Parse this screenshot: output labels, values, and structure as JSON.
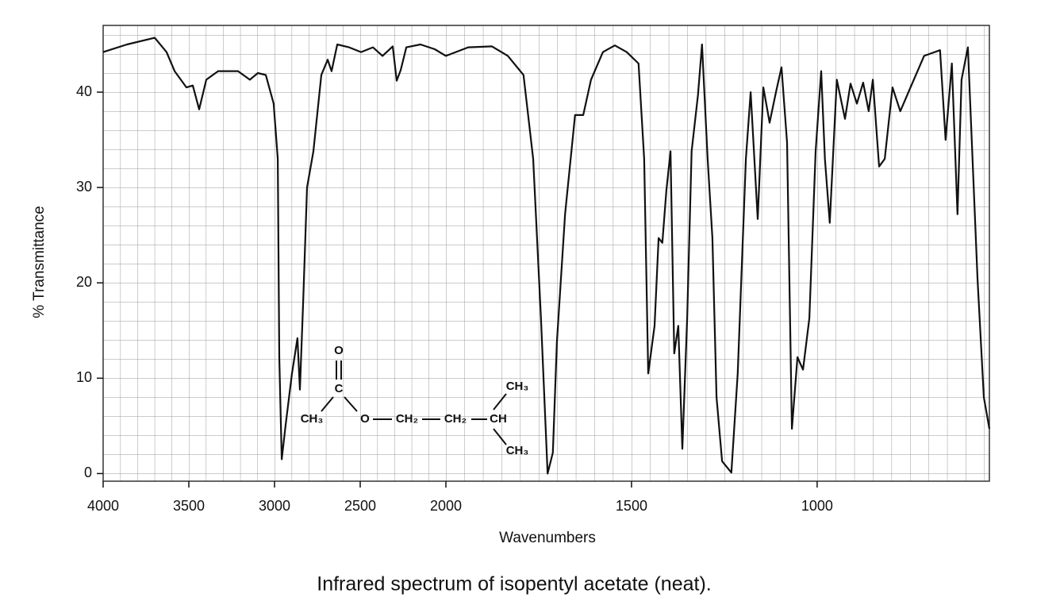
{
  "chart_data": {
    "type": "line",
    "xlabel": "Wavenumbers",
    "ylabel": "% Transmittance",
    "caption": "Infrared spectrum of isopentyl acetate (neat).",
    "structure": {
      "labels": [
        "O",
        "C",
        "CH₃",
        "O",
        "CH₂",
        "CH₂",
        "CH",
        "CH₃",
        "CH₃"
      ]
    },
    "color": "#111111",
    "xlim": [
      4000,
      536
    ],
    "xbreak": 2000,
    "ylim": [
      -0.8,
      47
    ],
    "xticks": [
      4000,
      3500,
      3000,
      2500,
      2000,
      1500,
      1000
    ],
    "yticks": [
      0,
      10,
      20,
      30,
      40
    ],
    "grid": true,
    "x": [
      4000,
      3861,
      3699,
      3630,
      3583,
      3514,
      3477,
      3440,
      3398,
      3329,
      3213,
      3144,
      3097,
      3051,
      3005,
      2981,
      2972,
      2958,
      2935,
      2898,
      2866,
      2852,
      2833,
      2810,
      2773,
      2727,
      2690,
      2667,
      2634,
      2565,
      2495,
      2426,
      2370,
      2310,
      2287,
      2264,
      2231,
      2148,
      2065,
      2000,
      1940,
      1876,
      1833,
      1791,
      1765,
      1744,
      1726,
      1712,
      1701,
      1679,
      1652,
      1630,
      1609,
      1577,
      1545,
      1513,
      1481,
      1466,
      1455,
      1438,
      1427,
      1417,
      1406,
      1395,
      1385,
      1374,
      1363,
      1350,
      1338,
      1321,
      1310,
      1295,
      1282,
      1271,
      1256,
      1231,
      1214,
      1192,
      1179,
      1160,
      1145,
      1128,
      1111,
      1096,
      1081,
      1068,
      1053,
      1038,
      1021,
      1004,
      989,
      979,
      966,
      947,
      925,
      910,
      893,
      876,
      861,
      850,
      833,
      818,
      797,
      776,
      754,
      712,
      669,
      654,
      637,
      622,
      611,
      594,
      568,
      551,
      536
    ],
    "values": [
      44.2,
      45.0,
      45.7,
      44.2,
      42.2,
      40.5,
      40.7,
      38.2,
      41.3,
      42.2,
      42.2,
      41.3,
      42.0,
      41.8,
      38.8,
      33.0,
      12.2,
      1.5,
      5.1,
      10.5,
      14.2,
      8.8,
      18.0,
      30.0,
      33.8,
      41.8,
      43.4,
      42.2,
      45.0,
      44.7,
      44.2,
      44.7,
      43.8,
      44.8,
      41.2,
      42.3,
      44.7,
      45.0,
      44.5,
      43.8,
      44.7,
      44.8,
      43.8,
      41.8,
      33.0,
      16.3,
      0.0,
      2.2,
      13.8,
      27.2,
      37.6,
      37.6,
      41.3,
      44.2,
      44.9,
      44.2,
      43.0,
      33.0,
      10.5,
      15.5,
      24.7,
      24.2,
      29.7,
      33.8,
      12.6,
      15.5,
      2.6,
      16.3,
      33.8,
      39.7,
      45.0,
      33.0,
      24.7,
      8.0,
      1.3,
      0.1,
      10.5,
      33.0,
      40.0,
      26.7,
      40.5,
      36.8,
      40.0,
      42.6,
      34.7,
      4.7,
      12.2,
      10.9,
      16.3,
      33.8,
      42.2,
      33.0,
      26.3,
      41.3,
      37.2,
      40.9,
      38.8,
      41.0,
      38.0,
      41.3,
      32.2,
      33.0,
      40.5,
      38.0,
      40.0,
      43.8,
      44.4,
      35.0,
      43.0,
      27.2,
      41.3,
      44.7,
      20.5,
      8.0,
      4.7
    ]
  }
}
